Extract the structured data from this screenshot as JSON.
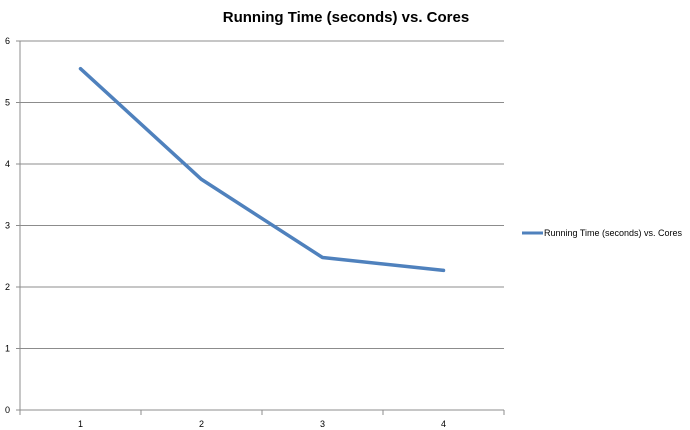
{
  "chart_data": {
    "type": "line",
    "title": "Running Time (seconds) vs. Cores",
    "xlabel": "",
    "ylabel": "",
    "categories": [
      "1",
      "2",
      "3",
      "4"
    ],
    "ylim": [
      0,
      6
    ],
    "yticks": [
      "0",
      "1",
      "2",
      "3",
      "4",
      "5",
      "6"
    ],
    "grid": true,
    "legend_position": "right",
    "series": [
      {
        "name": "Running Time (seconds) vs. Cores",
        "values": [
          5.55,
          3.75,
          2.48,
          2.27
        ],
        "color": "#4f81bd"
      }
    ]
  }
}
